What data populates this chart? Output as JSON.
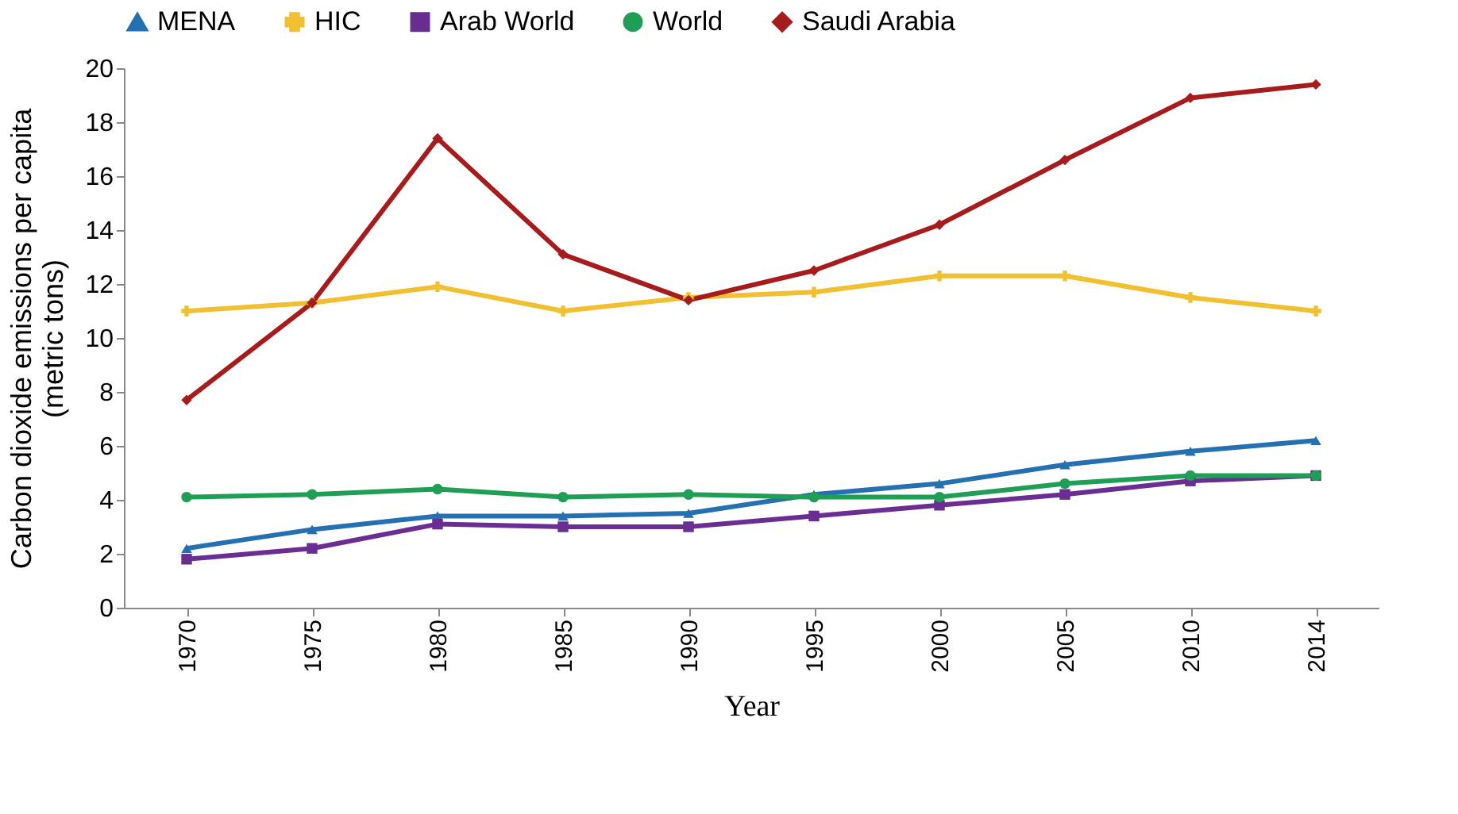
{
  "chart_data": {
    "type": "line",
    "xlabel": "Year",
    "ylabel": "Carbon dioxide  emissions per capita\n(metric tons)",
    "categories": [
      "1970",
      "1975",
      "1980",
      "1985",
      "1990",
      "1995",
      "2000",
      "2005",
      "2010",
      "2014"
    ],
    "ylim": [
      0,
      20
    ],
    "yticks": [
      0,
      2,
      4,
      6,
      8,
      10,
      12,
      14,
      16,
      18,
      20
    ],
    "grid": false,
    "legend": "top",
    "series": [
      {
        "name": "MENA",
        "color": "#2470b0",
        "marker": "triangle",
        "values": [
          2.2,
          2.9,
          3.4,
          3.4,
          3.5,
          4.2,
          4.6,
          5.3,
          5.8,
          6.2
        ]
      },
      {
        "name": "HIC",
        "color": "#f0c030",
        "marker": "cross",
        "values": [
          11.0,
          11.3,
          11.9,
          11.0,
          11.5,
          11.7,
          12.3,
          12.3,
          11.5,
          11.0
        ]
      },
      {
        "name": "Arab World",
        "color": "#6a2d91",
        "marker": "square",
        "values": [
          1.8,
          2.2,
          3.1,
          3.0,
          3.0,
          3.4,
          3.8,
          4.2,
          4.7,
          4.9
        ]
      },
      {
        "name": "World",
        "color": "#1f9e55",
        "marker": "circle",
        "values": [
          4.1,
          4.2,
          4.4,
          4.1,
          4.2,
          4.1,
          4.1,
          4.6,
          4.9,
          4.9
        ]
      },
      {
        "name": "Saudi Arabia",
        "color": "#a61c1c",
        "marker": "diamond",
        "values": [
          7.7,
          11.3,
          17.4,
          13.1,
          11.4,
          12.5,
          14.2,
          16.6,
          18.9,
          19.4
        ]
      }
    ]
  }
}
